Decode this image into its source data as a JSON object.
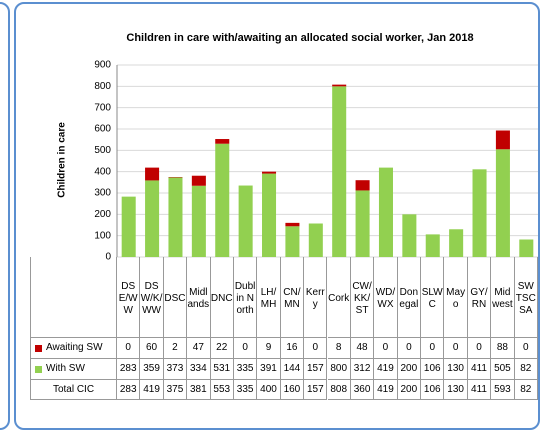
{
  "chart_data": {
    "type": "bar",
    "stacked": true,
    "title": "Children in care with/awaiting  an allocated social worker, Jan 2018",
    "ylabel": "Children  in care",
    "categories": [
      "DSE/WW",
      "DSW/K/WW",
      "DSC",
      "Midlands",
      "DNC",
      "Dublin North",
      "LH/MH",
      "CN/MN",
      "Kerry",
      "Cork",
      "CW/KK/ST",
      "WD/WX",
      "Donegal",
      "SLWC",
      "Mayo",
      "GY/RN",
      "Midwest",
      "SW TSC SA"
    ],
    "series": [
      {
        "name": "Awaiting SW",
        "color": "#c00000",
        "values": [
          0,
          60,
          2,
          47,
          22,
          0,
          9,
          16,
          0,
          8,
          48,
          0,
          0,
          0,
          0,
          0,
          88,
          0
        ]
      },
      {
        "name": "With SW",
        "color": "#92d050",
        "values": [
          283,
          359,
          373,
          334,
          531,
          335,
          391,
          144,
          157,
          800,
          312,
          419,
          200,
          106,
          130,
          411,
          505,
          82
        ]
      }
    ],
    "totals_name": "Total  CIC",
    "totals": [
      283,
      419,
      375,
      381,
      553,
      335,
      400,
      160,
      157,
      808,
      360,
      419,
      200,
      106,
      130,
      411,
      593,
      82
    ],
    "ylim": [
      0,
      900
    ],
    "yticks": [
      0,
      100,
      200,
      300,
      400,
      500,
      600,
      700,
      800,
      900
    ],
    "grid": true
  }
}
